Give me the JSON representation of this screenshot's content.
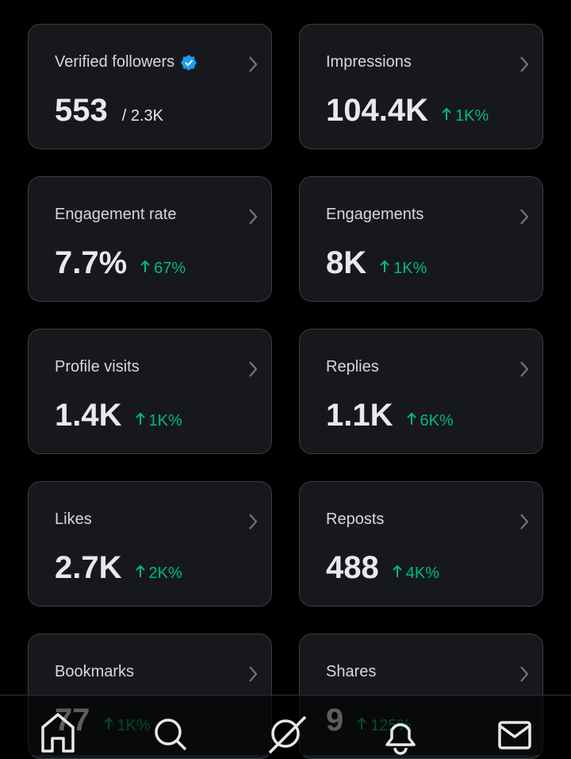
{
  "cards": [
    {
      "label": "Verified followers",
      "value": "553",
      "total": "/ 2.3K"
    },
    {
      "label": "Impressions",
      "value": "104.4K",
      "change": "1K%"
    },
    {
      "label": "Engagement rate",
      "value": "7.7%",
      "change": "67%"
    },
    {
      "label": "Engagements",
      "value": "8K",
      "change": "1K%"
    },
    {
      "label": "Profile visits",
      "value": "1.4K",
      "change": "1K%"
    },
    {
      "label": "Replies",
      "value": "1.1K",
      "change": "6K%"
    },
    {
      "label": "Likes",
      "value": "2.7K",
      "change": "2K%"
    },
    {
      "label": "Reposts",
      "value": "488",
      "change": "4K%"
    },
    {
      "label": "Bookmarks",
      "value": "77",
      "change": "1K%"
    },
    {
      "label": "Shares",
      "value": "9",
      "change": "125%"
    }
  ]
}
